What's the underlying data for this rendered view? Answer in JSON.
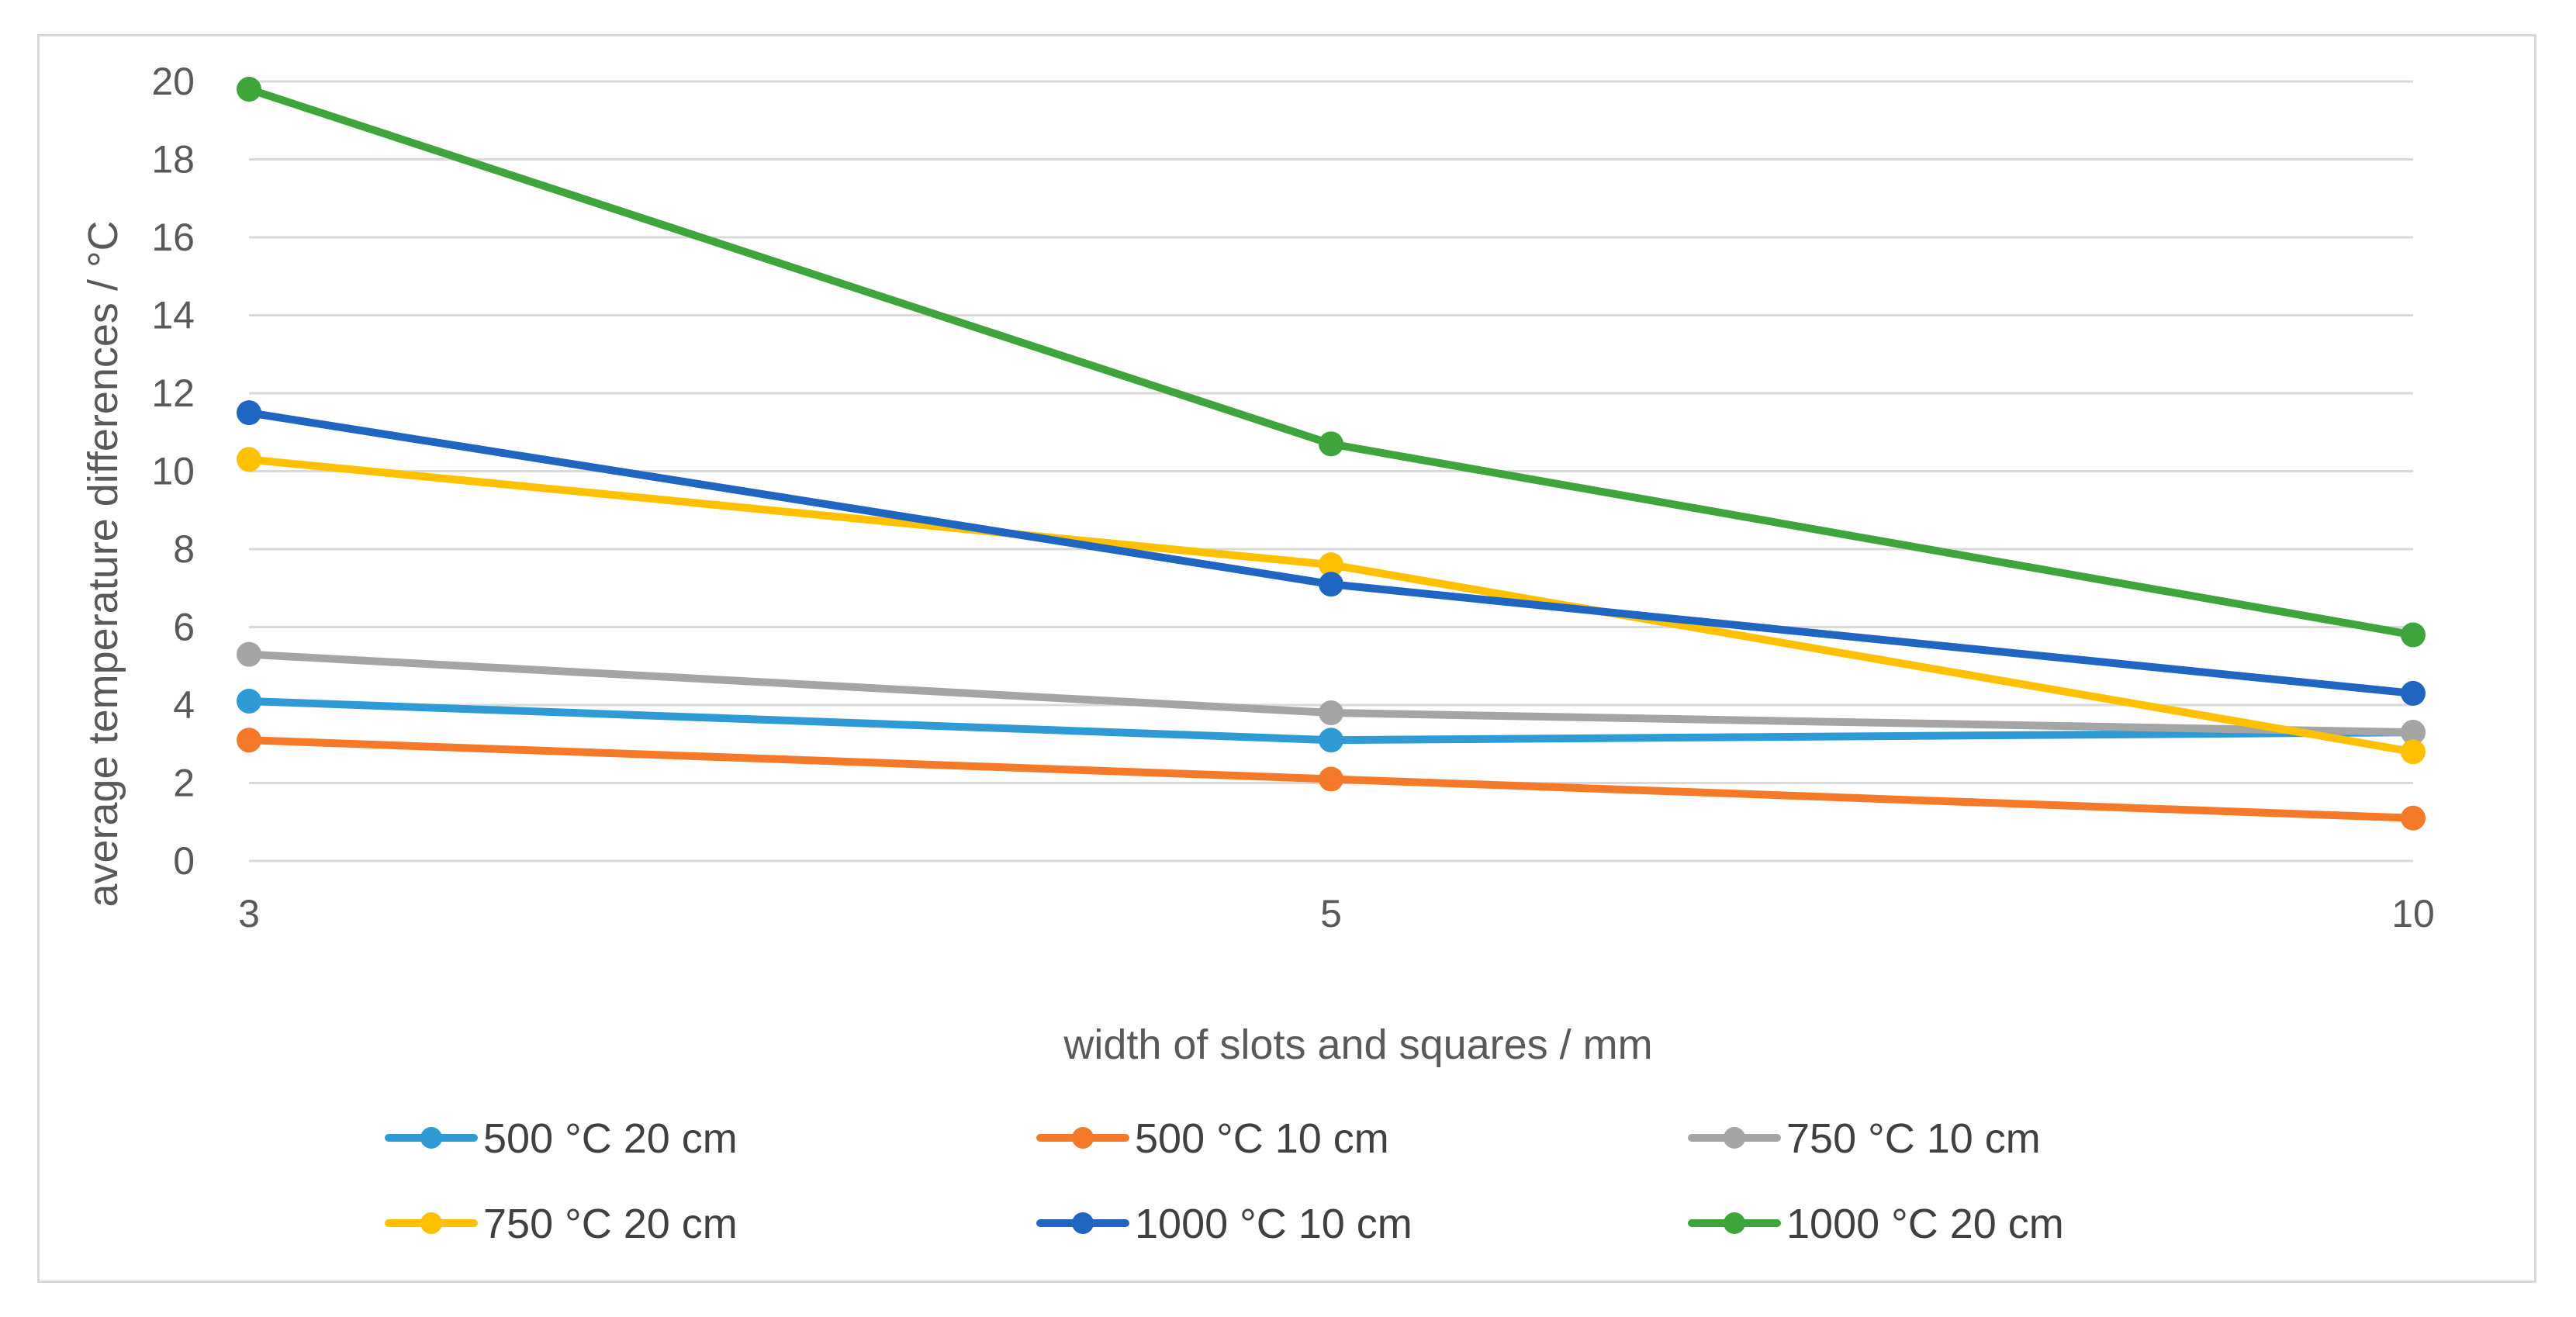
{
  "chart_data": {
    "type": "line",
    "title": "",
    "x": [
      "3",
      "5",
      "10"
    ],
    "xlabel": "width of slots and squares / mm",
    "ylabel": "average temperature differences / °C",
    "ylim": [
      0,
      20
    ],
    "yticks": [
      0,
      2,
      4,
      6,
      8,
      10,
      12,
      14,
      16,
      18,
      20
    ],
    "grid": "horizontal",
    "legend_position": "bottom",
    "series": [
      {
        "name": "500 °C 20 cm",
        "color": "#2E9BD6",
        "values": [
          4.1,
          3.1,
          3.3
        ]
      },
      {
        "name": "500 °C 10 cm",
        "color": "#F47A2A",
        "values": [
          3.1,
          2.1,
          1.1
        ]
      },
      {
        "name": "750 °C 10 cm",
        "color": "#A5A5A5",
        "values": [
          5.3,
          3.8,
          3.3
        ]
      },
      {
        "name": "750 °C 20 cm",
        "color": "#FFC000",
        "values": [
          10.3,
          7.6,
          2.8
        ]
      },
      {
        "name": "1000 °C 10 cm",
        "color": "#1F66C2",
        "values": [
          11.5,
          7.1,
          4.3
        ]
      },
      {
        "name": "1000 °C 20 cm",
        "color": "#3DA53A",
        "values": [
          19.8,
          10.7,
          5.8
        ]
      }
    ]
  }
}
